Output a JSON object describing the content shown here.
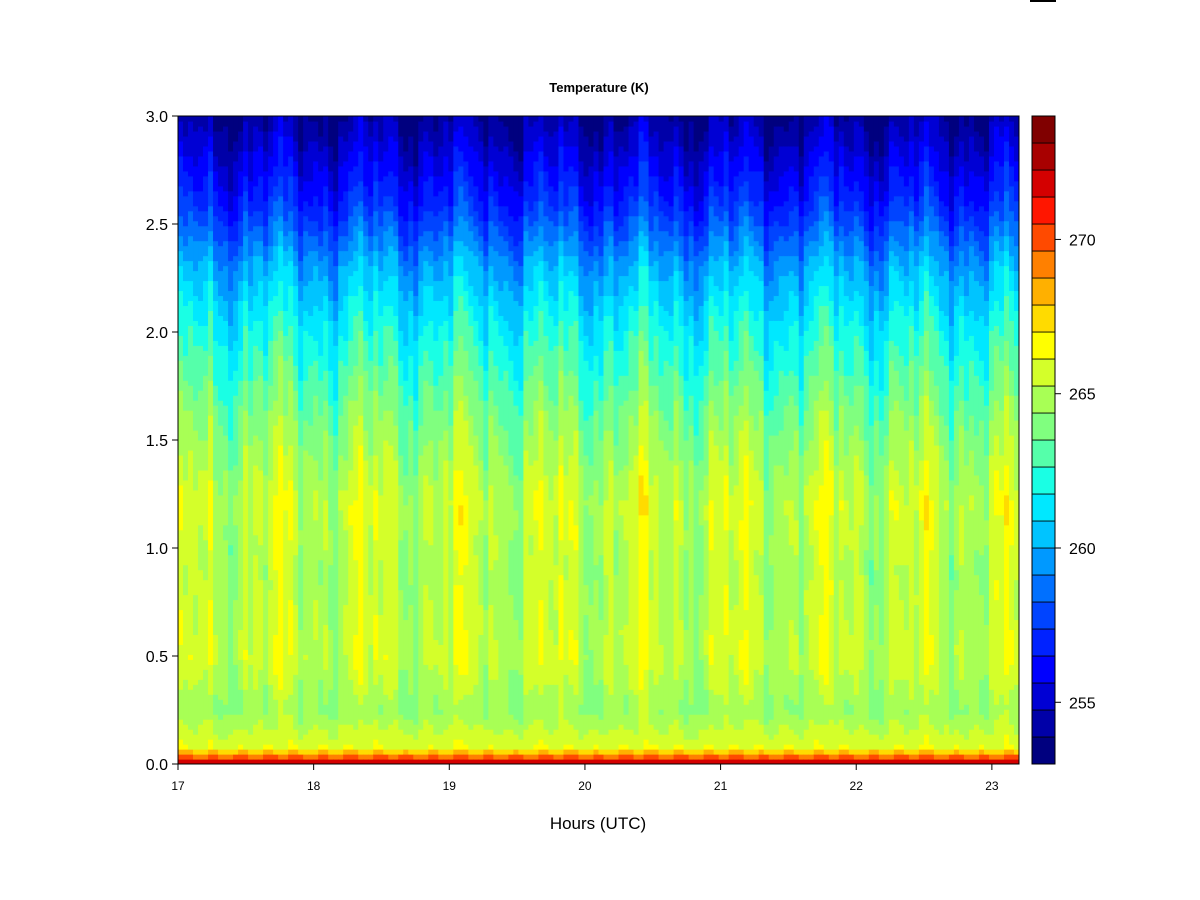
{
  "chart_data": {
    "type": "heatmap",
    "title": "Temperature (K)",
    "xlabel": "Hours (UTC)",
    "ylabel": "",
    "xlim": [
      17,
      23.2
    ],
    "ylim": [
      0,
      3.0
    ],
    "x_ticks": [
      17,
      18,
      19,
      20,
      21,
      22,
      23
    ],
    "y_ticks": [
      "0.0",
      "0.5",
      "1.0",
      "1.5",
      "2.0",
      "2.5",
      "3.0"
    ],
    "colorbar": {
      "range": [
        253,
        274
      ],
      "ticks": [
        255,
        260,
        265,
        270
      ],
      "levels": 21,
      "colors": [
        "#00007f",
        "#0000a8",
        "#0000d4",
        "#0000ff",
        "#0022ff",
        "#0044ff",
        "#0070ff",
        "#0099ff",
        "#00c4ff",
        "#00e8ff",
        "#1affe4",
        "#55ffaa",
        "#80ff7f",
        "#a8ff55",
        "#d4ff2a",
        "#ffff00",
        "#ffdb00",
        "#ffb000",
        "#ff8000",
        "#ff4a00",
        "#ff1600",
        "#d40000",
        "#a80000",
        "#800000"
      ]
    },
    "profile": [
      {
        "height": 0.0,
        "temperature": 273
      },
      {
        "height": 0.03,
        "temperature": 270
      },
      {
        "height": 0.08,
        "temperature": 266
      },
      {
        "height": 0.25,
        "temperature": 264.5
      },
      {
        "height": 0.5,
        "temperature": 265.5
      },
      {
        "height": 0.9,
        "temperature": 265
      },
      {
        "height": 1.2,
        "temperature": 265.5
      },
      {
        "height": 1.6,
        "temperature": 264
      },
      {
        "height": 2.0,
        "temperature": 262
      },
      {
        "height": 2.3,
        "temperature": 260
      },
      {
        "height": 2.6,
        "temperature": 257
      },
      {
        "height": 3.0,
        "temperature": 254
      }
    ]
  }
}
